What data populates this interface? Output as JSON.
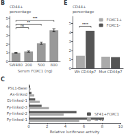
{
  "chart_data": [
    {
      "type": "bar",
      "title": "B",
      "categories": [
        "SW480",
        "200",
        "500",
        "800"
      ],
      "values": [
        1.0,
        1.15,
        2.1,
        3.6
      ],
      "errors": [
        0.06,
        0.07,
        0.12,
        0.18
      ],
      "color": "#999999",
      "xlabel": "Serum FOXC1 (ng)",
      "ylabel": "CD44+\npercentage",
      "ylim": [
        0,
        5.2
      ],
      "yticks": [
        0,
        1,
        2,
        3,
        4,
        5
      ],
      "grid": false,
      "annotations": [
        {
          "text": "ns",
          "x": [
            "SW480",
            "200"
          ],
          "y": 3.9
        },
        {
          "text": "**",
          "x": [
            "SW480",
            "500"
          ],
          "y": 4.3
        },
        {
          "text": "***",
          "x": [
            "SW480",
            "800"
          ],
          "y": 4.75
        }
      ]
    },
    {
      "type": "bar",
      "title": "C",
      "orientation": "horizontal",
      "categories": [
        "Py-linked-1",
        "Py-linked-2",
        "Py-linked-3",
        "Et-linked-1",
        "Ax-linked",
        "PSL1-Base"
      ],
      "series": [
        {
          "name": "SF41+FOXC1",
          "color": "#555555",
          "values": [
            8.2,
            5.2,
            1.4,
            0.7,
            0.3,
            0.15
          ]
        },
        {
          "name": "SF41",
          "color": "#aaaaaa",
          "values": [
            5.5,
            3.8,
            2.2,
            1.2,
            0.6,
            0.2
          ]
        }
      ],
      "xlabel": "Relative luciferase activity",
      "xlim": [
        0,
        10
      ],
      "xticks": [
        0,
        2,
        4,
        6,
        8,
        10
      ],
      "legend": "lower right",
      "grid": false
    },
    {
      "type": "bar",
      "title": "E",
      "categories": [
        "Wt CD44p7",
        "Mut CD44p7"
      ],
      "series": [
        {
          "name": "FOXC1+",
          "color": "#aaaaaa",
          "values": [
            1.4,
            1.3
          ]
        },
        {
          "name": "FOXC1-",
          "color": "#555555",
          "values": [
            4.2,
            1.25
          ]
        }
      ],
      "ylabel": "CD44+\npercentage",
      "ylim": [
        0,
        5.8
      ],
      "yticks": [
        0,
        1,
        2,
        3,
        4,
        5
      ],
      "legend": "upper right",
      "grid": false,
      "annotations": [
        {
          "text": "****",
          "x": [
            "Wt CD44p7"
          ],
          "y": 4.7
        }
      ]
    }
  ]
}
